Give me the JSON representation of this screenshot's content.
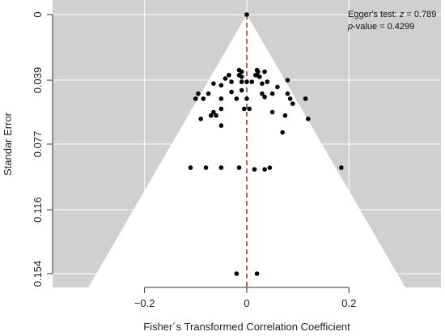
{
  "chart_data": {
    "type": "scatter",
    "subtype": "funnel-plot",
    "title": "",
    "xlabel": "Fisher´s Transformed Correlation Coefficient",
    "ylabel": "Standar Error",
    "xlim": [
      -0.38,
      0.38
    ],
    "ylim": [
      0.154,
      0
    ],
    "y_reversed": true,
    "x_ticks": [
      -0.2,
      0,
      0.2
    ],
    "x_tick_labels": [
      "−0.2",
      "0",
      "0.2"
    ],
    "y_ticks": [
      0,
      0.039,
      0.077,
      0.116,
      0.154
    ],
    "y_tick_labels": [
      "0",
      "0.039",
      "0.077",
      "0.116",
      "0.154"
    ],
    "grid": true,
    "background_color": "#d0d0d0",
    "funnel_color": "#ffffff",
    "point_color": "#000000",
    "reference_line_color": "#8b2500",
    "reference_line_x": 0,
    "funnel_apex_x": 0,
    "funnel_base_half_width": 0.31,
    "annotation": {
      "line1_prefix": "Egger's test: ",
      "line1_var": "z",
      "line1_suffix": " = 0.789",
      "line2_var": "p",
      "line2_suffix": "-value = 0.4299"
    },
    "points": [
      {
        "x": 0.0,
        "y": 0.0
      },
      {
        "x": -0.015,
        "y": 0.033
      },
      {
        "x": -0.01,
        "y": 0.034
      },
      {
        "x": 0.02,
        "y": 0.033
      },
      {
        "x": 0.022,
        "y": 0.034
      },
      {
        "x": 0.035,
        "y": 0.034
      },
      {
        "x": -0.035,
        "y": 0.036
      },
      {
        "x": -0.015,
        "y": 0.036
      },
      {
        "x": 0.02,
        "y": 0.036
      },
      {
        "x": 0.017,
        "y": 0.036
      },
      {
        "x": -0.01,
        "y": 0.037
      },
      {
        "x": -0.042,
        "y": 0.038
      },
      {
        "x": 0.025,
        "y": 0.037
      },
      {
        "x": -0.03,
        "y": 0.04
      },
      {
        "x": -0.01,
        "y": 0.04
      },
      {
        "x": 0.0,
        "y": 0.04
      },
      {
        "x": 0.01,
        "y": 0.04
      },
      {
        "x": 0.04,
        "y": 0.04
      },
      {
        "x": 0.08,
        "y": 0.039
      },
      {
        "x": 0.03,
        "y": 0.041
      },
      {
        "x": -0.065,
        "y": 0.041
      },
      {
        "x": -0.05,
        "y": 0.042
      },
      {
        "x": 0.06,
        "y": 0.043
      },
      {
        "x": -0.095,
        "y": 0.047
      },
      {
        "x": -0.075,
        "y": 0.047
      },
      {
        "x": -0.03,
        "y": 0.046
      },
      {
        "x": -0.01,
        "y": 0.045
      },
      {
        "x": 0.03,
        "y": 0.047
      },
      {
        "x": 0.05,
        "y": 0.047
      },
      {
        "x": 0.08,
        "y": 0.047
      },
      {
        "x": -0.1,
        "y": 0.05
      },
      {
        "x": -0.085,
        "y": 0.05
      },
      {
        "x": -0.05,
        "y": 0.05
      },
      {
        "x": -0.02,
        "y": 0.05
      },
      {
        "x": 0.0,
        "y": 0.05
      },
      {
        "x": 0.035,
        "y": 0.049
      },
      {
        "x": 0.085,
        "y": 0.05
      },
      {
        "x": 0.115,
        "y": 0.05
      },
      {
        "x": 0.09,
        "y": 0.053
      },
      {
        "x": -0.05,
        "y": 0.056
      },
      {
        "x": -0.065,
        "y": 0.058
      },
      {
        "x": -0.07,
        "y": 0.06
      },
      {
        "x": -0.06,
        "y": 0.06
      },
      {
        "x": -0.09,
        "y": 0.062
      },
      {
        "x": -0.005,
        "y": 0.056
      },
      {
        "x": 0.005,
        "y": 0.056
      },
      {
        "x": 0.05,
        "y": 0.058
      },
      {
        "x": 0.075,
        "y": 0.06
      },
      {
        "x": 0.12,
        "y": 0.062
      },
      {
        "x": -0.05,
        "y": 0.066
      },
      {
        "x": 0.07,
        "y": 0.07
      },
      {
        "x": -0.11,
        "y": 0.091
      },
      {
        "x": -0.08,
        "y": 0.091
      },
      {
        "x": -0.05,
        "y": 0.091
      },
      {
        "x": -0.015,
        "y": 0.091
      },
      {
        "x": 0.015,
        "y": 0.092
      },
      {
        "x": 0.035,
        "y": 0.092
      },
      {
        "x": 0.045,
        "y": 0.091
      },
      {
        "x": 0.185,
        "y": 0.091
      },
      {
        "x": -0.02,
        "y": 0.154
      },
      {
        "x": 0.02,
        "y": 0.154
      }
    ]
  }
}
